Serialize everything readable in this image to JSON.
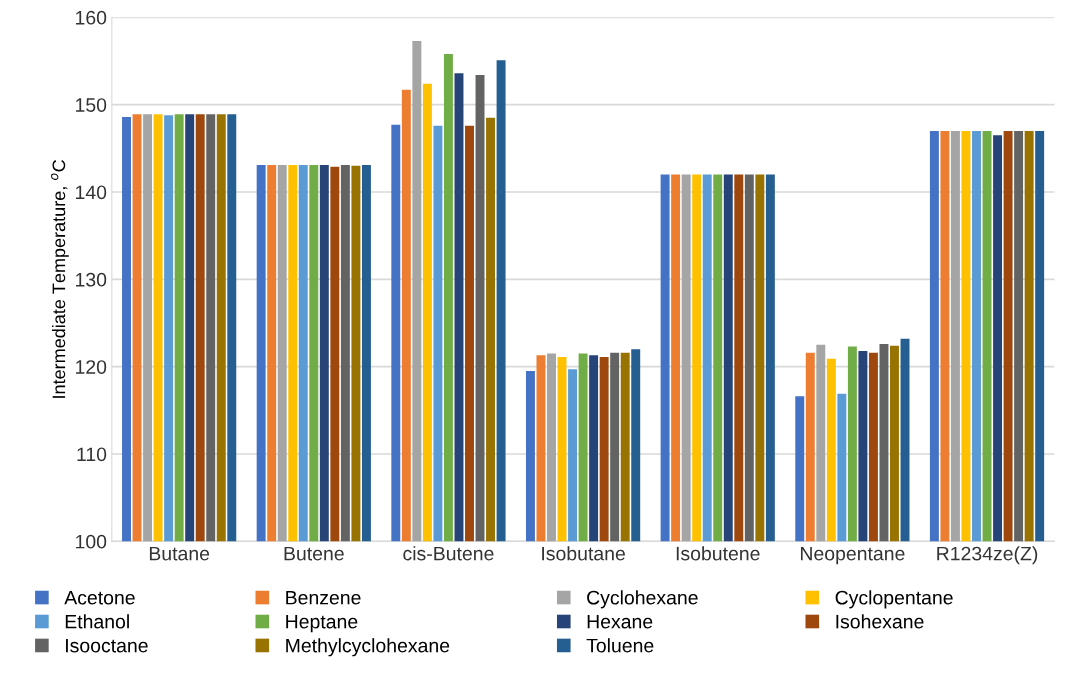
{
  "chart_data": {
    "type": "bar",
    "ylabel": "Intermediate Temperature, $^{o}$C",
    "categories": [
      "Butane",
      "Butene",
      "cis-Butene",
      "Isobutane",
      "Isobutene",
      "Neopentane",
      "R1234ze(Z)"
    ],
    "series": [
      {
        "name": "Acetone",
        "color": "#4472c4",
        "values": [
          148.6,
          143.1,
          147.7,
          119.5,
          142.0,
          116.6,
          147.0
        ]
      },
      {
        "name": "Benzene",
        "color": "#ed7d31",
        "values": [
          148.9,
          143.1,
          151.7,
          121.3,
          142.0,
          121.6,
          147.0
        ]
      },
      {
        "name": "Cyclohexane",
        "color": "#a5a5a5",
        "values": [
          148.9,
          143.1,
          157.3,
          121.5,
          142.0,
          122.5,
          147.0
        ]
      },
      {
        "name": "Cyclopentane",
        "color": "#ffc000",
        "values": [
          148.9,
          143.1,
          152.4,
          121.1,
          142.0,
          120.9,
          147.0
        ]
      },
      {
        "name": "Ethanol",
        "color": "#5b9bd5",
        "values": [
          148.8,
          143.1,
          147.6,
          119.7,
          142.0,
          116.9,
          147.0
        ]
      },
      {
        "name": "Heptane",
        "color": "#70ad47",
        "values": [
          148.9,
          143.1,
          155.8,
          121.5,
          142.0,
          122.3,
          147.0
        ]
      },
      {
        "name": "Hexane",
        "color": "#264478",
        "values": [
          148.9,
          143.1,
          153.6,
          121.3,
          142.0,
          121.8,
          146.5
        ]
      },
      {
        "name": "Isohexane",
        "color": "#9e480e",
        "values": [
          148.9,
          142.9,
          147.6,
          121.1,
          142.0,
          121.6,
          147.0
        ]
      },
      {
        "name": "Isooctane",
        "color": "#636363",
        "values": [
          148.9,
          143.1,
          153.4,
          121.6,
          142.0,
          122.6,
          147.0
        ]
      },
      {
        "name": "Methylcyclohexane",
        "color": "#997300",
        "values": [
          148.9,
          143.0,
          148.5,
          121.6,
          142.0,
          122.4,
          147.0
        ]
      },
      {
        "name": "Toluene",
        "color": "#255e91",
        "values": [
          148.9,
          143.1,
          155.1,
          122.0,
          142.0,
          123.2,
          147.0
        ]
      }
    ],
    "ylim": [
      100,
      160
    ],
    "yticks": [
      100,
      110,
      120,
      130,
      140,
      150,
      160
    ],
    "grid": "y",
    "legend": "bottom"
  }
}
